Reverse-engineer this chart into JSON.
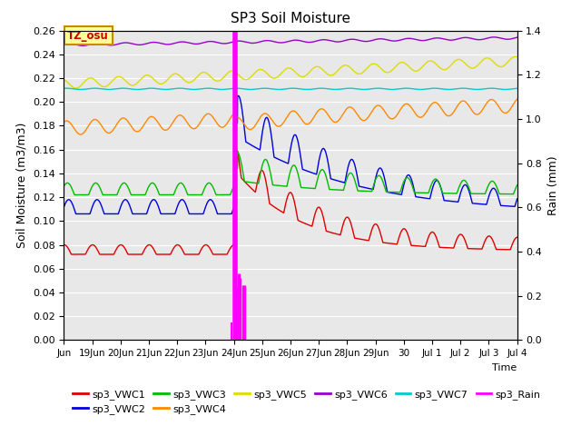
{
  "title": "SP3 Soil Moisture",
  "xlabel": "Time",
  "ylabel_left": "Soil Moisture (m3/m3)",
  "ylabel_right": "Rain (mm)",
  "ylim_left": [
    0.0,
    0.26
  ],
  "ylim_right": [
    0.0,
    1.4
  ],
  "background_color": "#e8e8e8",
  "grid_color": "#ffffff",
  "legend_box_color": "#ffff99",
  "legend_box_edge": "#cc8800",
  "tz_label": "TZ_osu",
  "xtick_labels": [
    "Jun",
    "19Jun",
    "20Jun",
    "21Jun",
    "22Jun",
    "23Jun",
    "24Jun",
    "25Jun",
    "26Jun",
    "27Jun",
    "28Jun",
    "29Jun",
    "30",
    "Jul 1",
    "Jul 2",
    "Jul 3",
    "Jul 4"
  ],
  "series": {
    "VWC1": {
      "color": "#dd0000",
      "label": "sp3_VWC1"
    },
    "VWC2": {
      "color": "#0000dd",
      "label": "sp3_VWC2"
    },
    "VWC3": {
      "color": "#00bb00",
      "label": "sp3_VWC3"
    },
    "VWC4": {
      "color": "#ff8800",
      "label": "sp3_VWC4"
    },
    "VWC5": {
      "color": "#dddd00",
      "label": "sp3_VWC5"
    },
    "VWC6": {
      "color": "#9900cc",
      "label": "sp3_VWC6"
    },
    "VWC7": {
      "color": "#00cccc",
      "label": "sp3_VWC7"
    },
    "Rain": {
      "color": "#ff00ff",
      "label": "sp3_Rain"
    }
  }
}
